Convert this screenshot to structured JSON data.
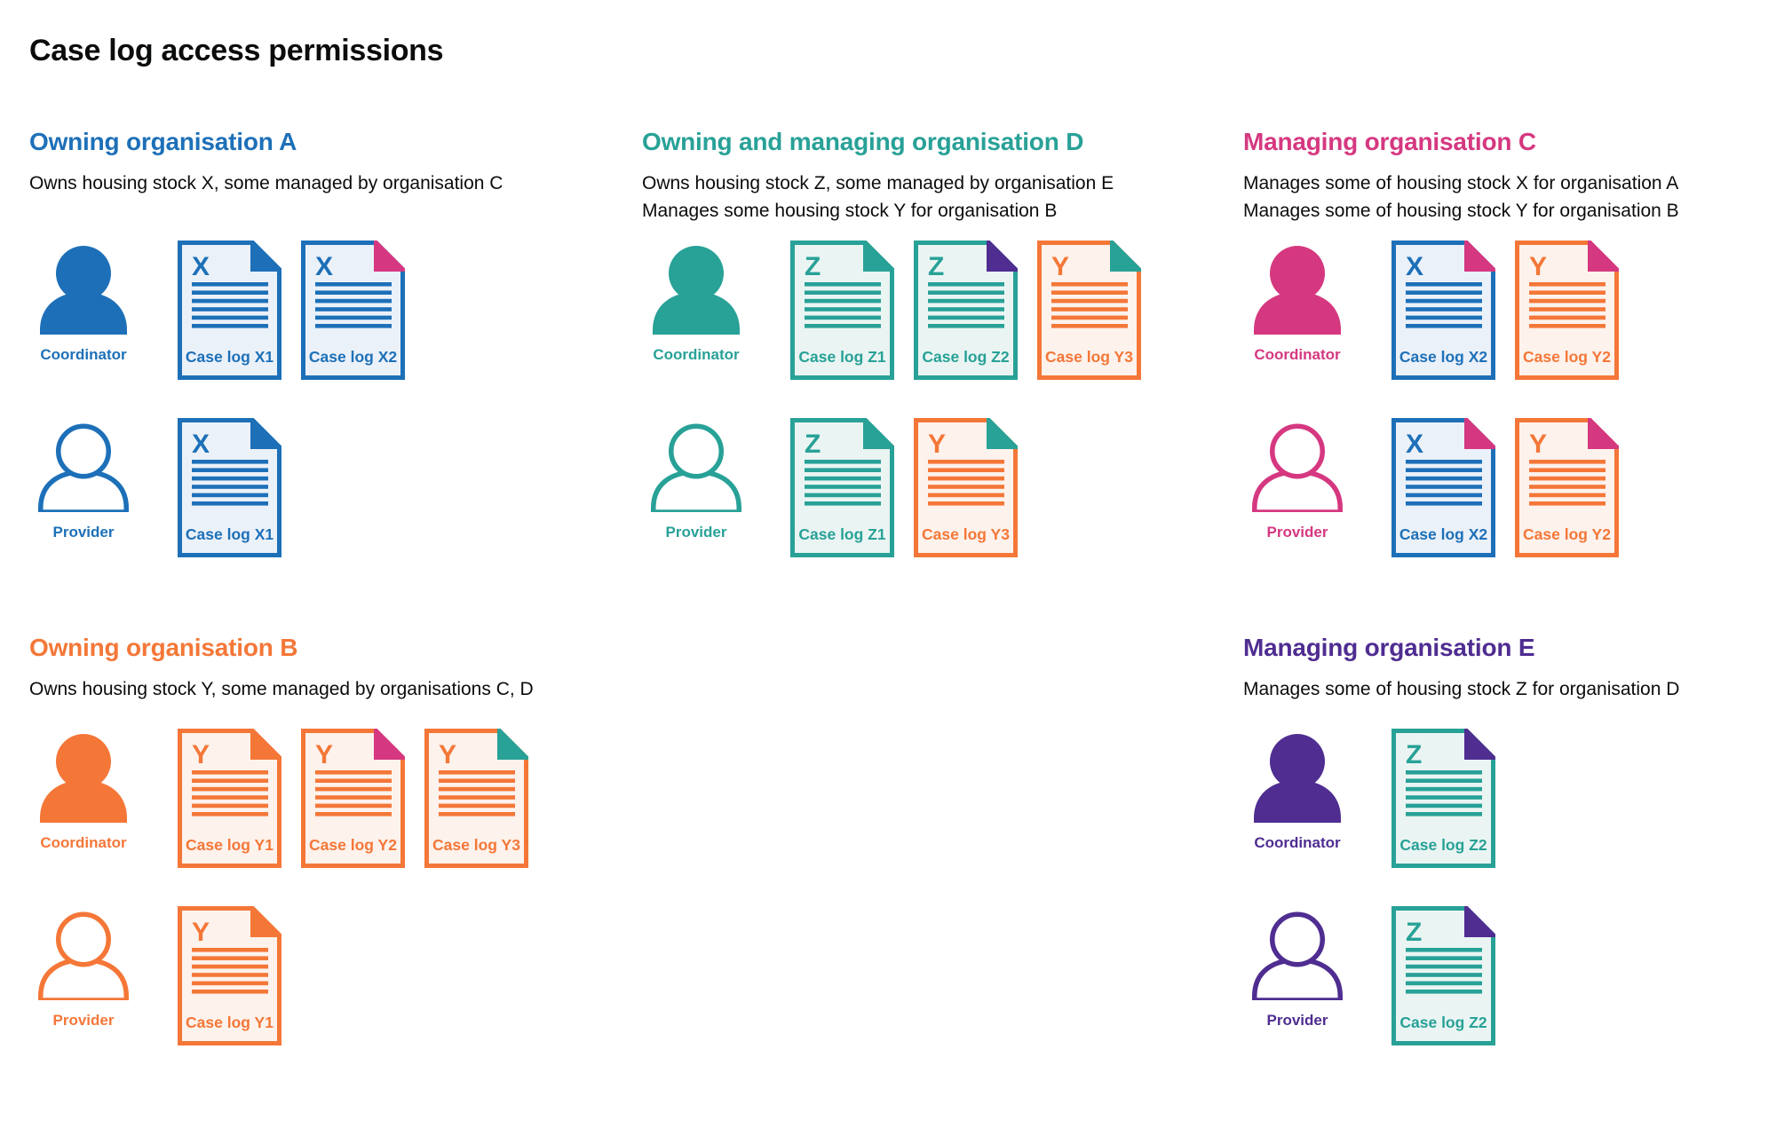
{
  "page_title": "Case log access permissions",
  "colors": {
    "blue": "#1d70b8",
    "teal": "#28a197",
    "pink": "#d53880",
    "orange": "#f47738",
    "purple": "#4f2d91",
    "text": "#0b0c0c",
    "blue_tint": "#ebf1f9",
    "teal_tint": "#eaf5f3",
    "orange_tint": "#fdf2ec"
  },
  "sections": [
    {
      "id": "owning-organisation-a",
      "heading": "Owning organisation A",
      "color": "blue",
      "description_lines": [
        "Owns housing stock X, some managed by organisation C"
      ],
      "rows": [
        {
          "role": "Coordinator",
          "person_style": "filled",
          "docs": [
            {
              "letter": "X",
              "label": "Case log X1",
              "doc_color": "blue",
              "fold_color": "blue"
            },
            {
              "letter": "X",
              "label": "Case log X2",
              "doc_color": "blue",
              "fold_color": "pink"
            }
          ]
        },
        {
          "role": "Provider",
          "person_style": "outline",
          "docs": [
            {
              "letter": "X",
              "label": "Case log X1",
              "doc_color": "blue",
              "fold_color": "blue"
            }
          ]
        }
      ]
    },
    {
      "id": "owning-and-managing-organisation-d",
      "heading": "Owning and managing organisation D",
      "color": "teal",
      "description_lines": [
        "Owns housing stock Z, some managed by organisation E",
        "Manages some housing stock Y for organisation B"
      ],
      "rows": [
        {
          "role": "Coordinator",
          "person_style": "filled",
          "docs": [
            {
              "letter": "Z",
              "label": "Case log Z1",
              "doc_color": "teal",
              "fold_color": "teal"
            },
            {
              "letter": "Z",
              "label": "Case log Z2",
              "doc_color": "teal",
              "fold_color": "purple"
            },
            {
              "letter": "Y",
              "label": "Case log Y3",
              "doc_color": "orange",
              "fold_color": "teal"
            }
          ]
        },
        {
          "role": "Provider",
          "person_style": "outline",
          "docs": [
            {
              "letter": "Z",
              "label": "Case log Z1",
              "doc_color": "teal",
              "fold_color": "teal"
            },
            {
              "letter": "Y",
              "label": "Case log Y3",
              "doc_color": "orange",
              "fold_color": "teal"
            }
          ]
        }
      ]
    },
    {
      "id": "managing-organisation-c",
      "heading": "Managing organisation C",
      "color": "pink",
      "description_lines": [
        "Manages some of housing stock X for organisation A",
        "Manages some of housing stock Y for organisation B"
      ],
      "rows": [
        {
          "role": "Coordinator",
          "person_style": "filled",
          "docs": [
            {
              "letter": "X",
              "label": "Case log X2",
              "doc_color": "blue",
              "fold_color": "pink"
            },
            {
              "letter": "Y",
              "label": "Case log Y2",
              "doc_color": "orange",
              "fold_color": "pink"
            }
          ]
        },
        {
          "role": "Provider",
          "person_style": "outline",
          "docs": [
            {
              "letter": "X",
              "label": "Case log X2",
              "doc_color": "blue",
              "fold_color": "pink"
            },
            {
              "letter": "Y",
              "label": "Case log Y2",
              "doc_color": "orange",
              "fold_color": "pink"
            }
          ]
        }
      ]
    },
    {
      "id": "owning-organisation-b",
      "heading": "Owning organisation B",
      "color": "orange",
      "description_lines": [
        "Owns housing stock Y, some managed by organisations C, D"
      ],
      "rows": [
        {
          "role": "Coordinator",
          "person_style": "filled",
          "docs": [
            {
              "letter": "Y",
              "label": "Case log Y1",
              "doc_color": "orange",
              "fold_color": "orange"
            },
            {
              "letter": "Y",
              "label": "Case log Y2",
              "doc_color": "orange",
              "fold_color": "pink"
            },
            {
              "letter": "Y",
              "label": "Case log Y3",
              "doc_color": "orange",
              "fold_color": "teal"
            }
          ]
        },
        {
          "role": "Provider",
          "person_style": "outline",
          "docs": [
            {
              "letter": "Y",
              "label": "Case log Y1",
              "doc_color": "orange",
              "fold_color": "orange"
            }
          ]
        }
      ]
    },
    {
      "id": "managing-organisation-e",
      "heading": "Managing organisation E",
      "color": "purple",
      "description_lines": [
        "Manages some of housing stock Z for organisation D"
      ],
      "rows": [
        {
          "role": "Coordinator",
          "person_style": "filled",
          "docs": [
            {
              "letter": "Z",
              "label": "Case log Z2",
              "doc_color": "teal",
              "fold_color": "purple"
            }
          ]
        },
        {
          "role": "Provider",
          "person_style": "outline",
          "docs": [
            {
              "letter": "Z",
              "label": "Case log Z2",
              "doc_color": "teal",
              "fold_color": "purple"
            }
          ]
        }
      ]
    }
  ]
}
